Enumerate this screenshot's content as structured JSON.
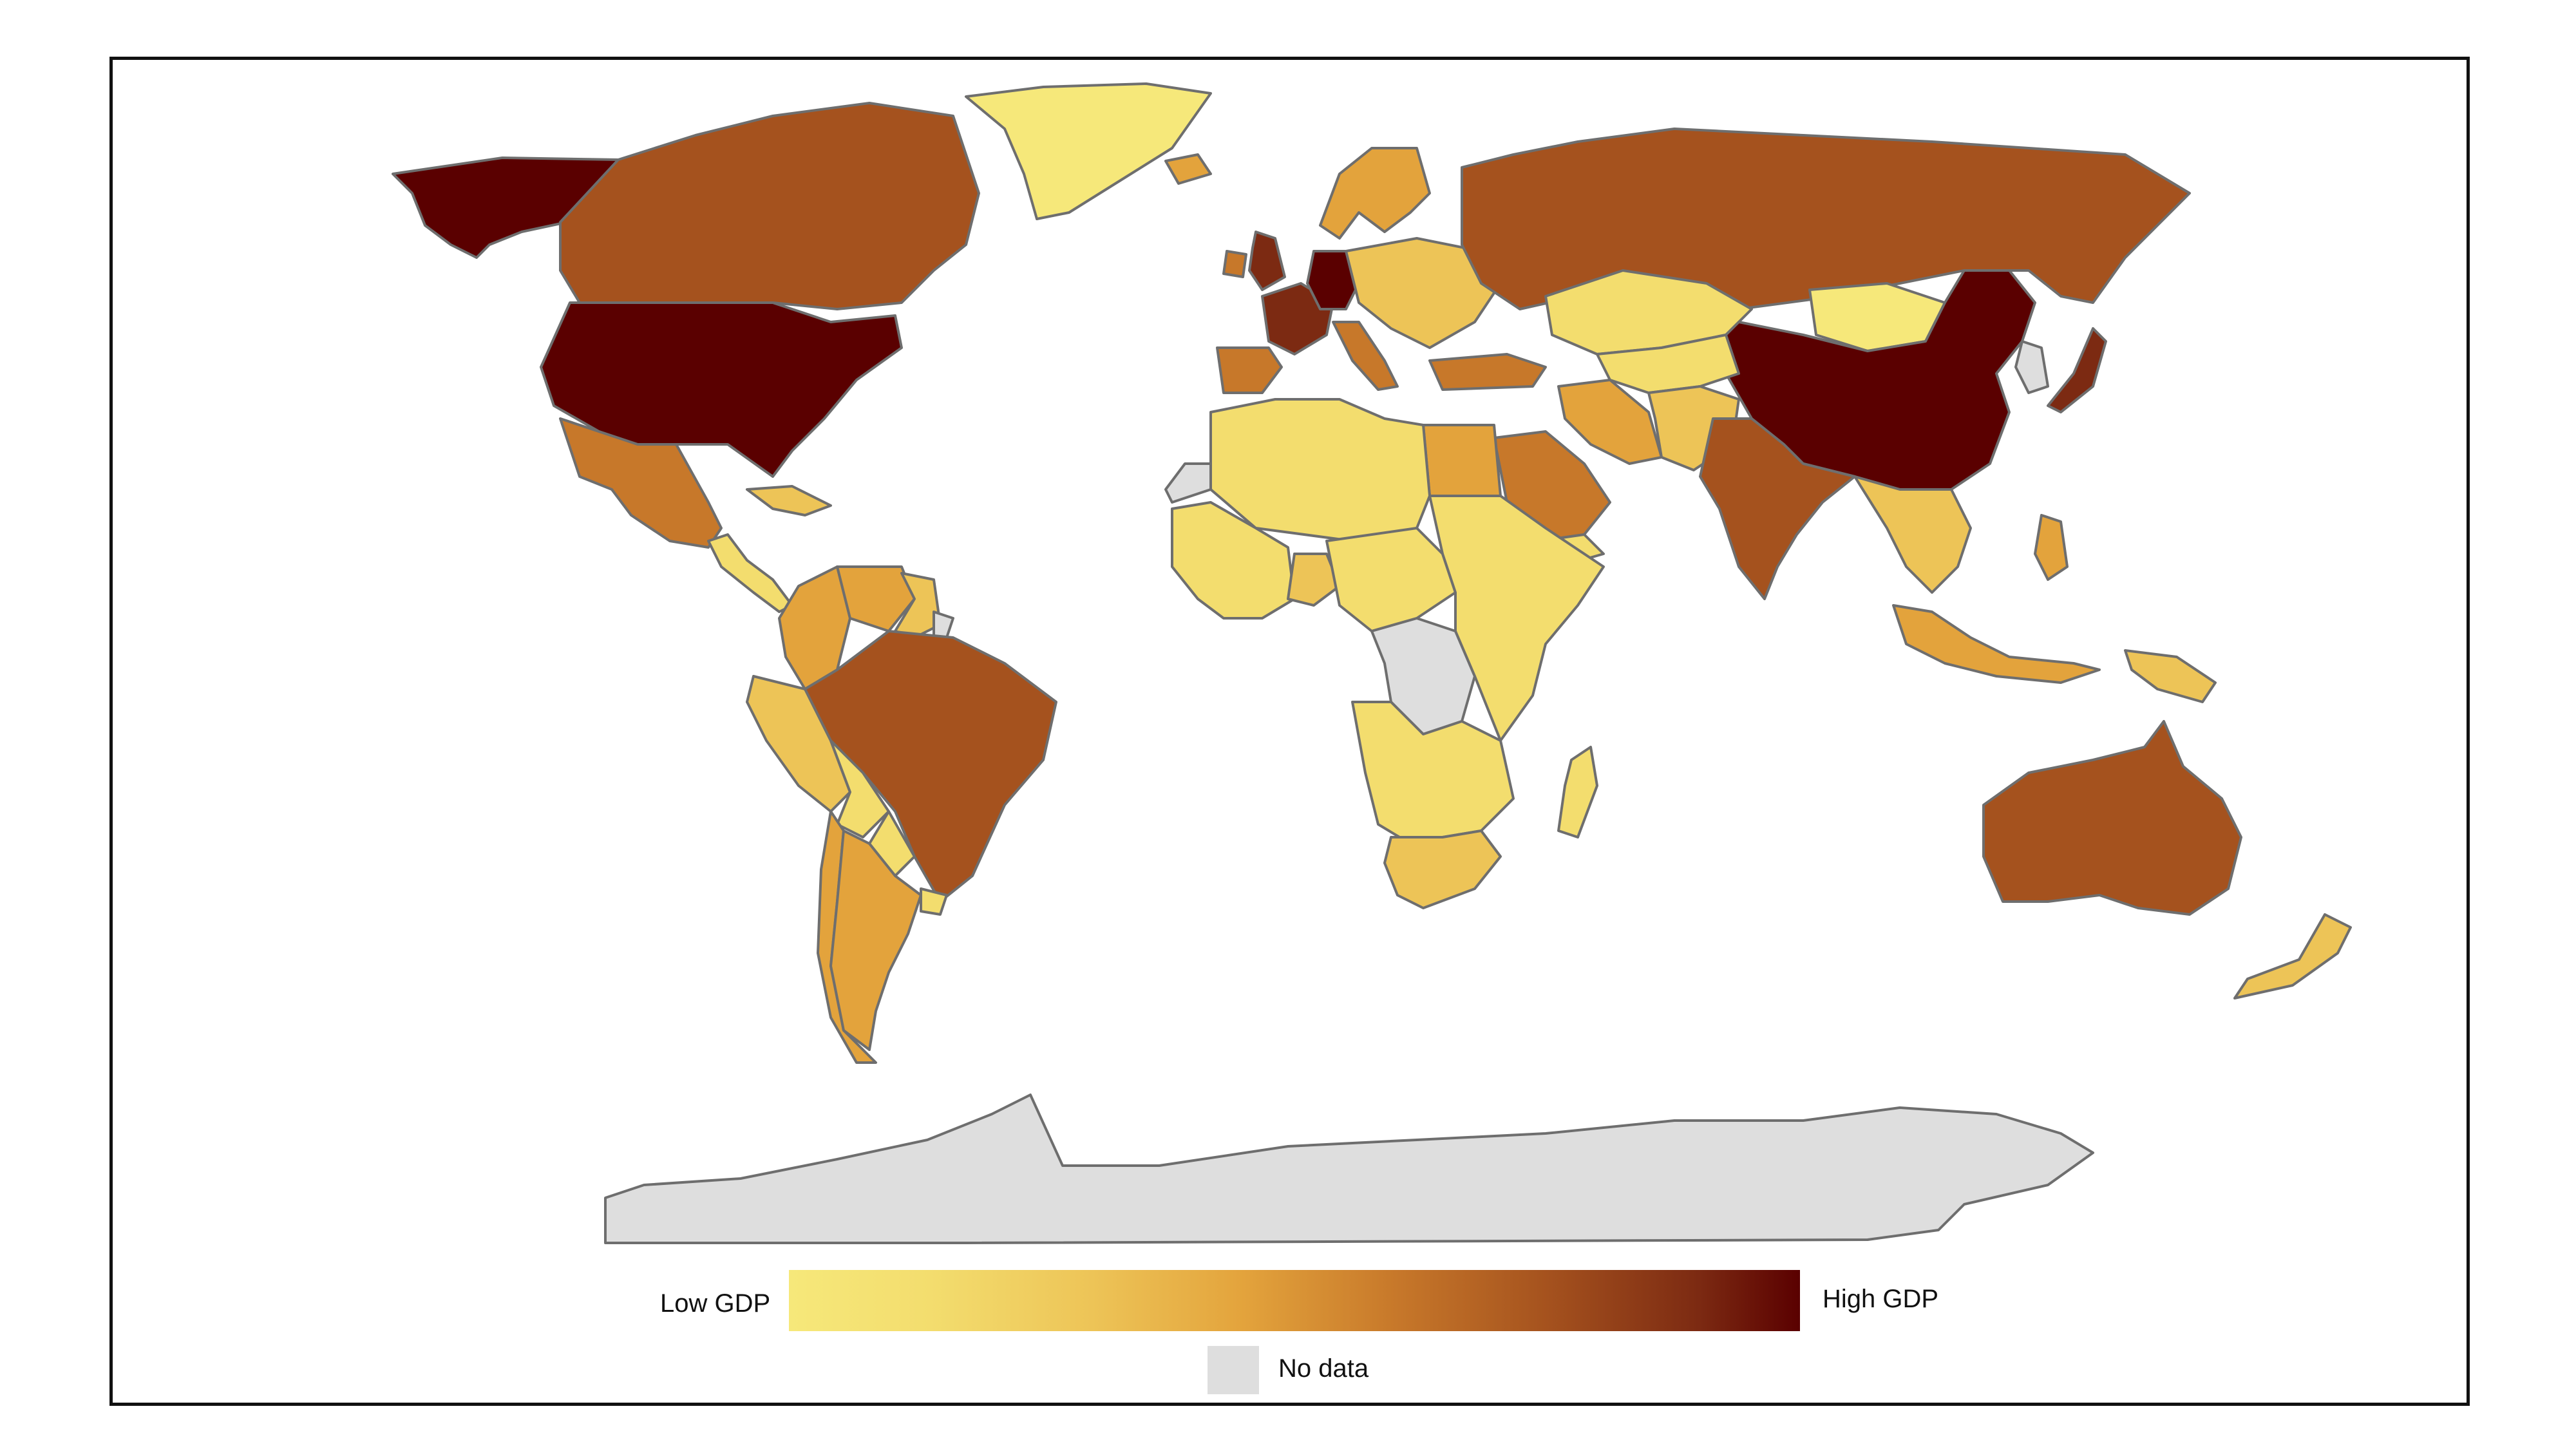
{
  "colors": {
    "stops": [
      "#F6E87A",
      "#F3DD6E",
      "#EDC457",
      "#E3A33C",
      "#C7782A",
      "#A5521E",
      "#7C2A12",
      "#5A0000"
    ],
    "no_data": "#DEDEDE",
    "border": "#6E6E6E",
    "background": "#FFFFFF",
    "frame": "#111111"
  },
  "legend": {
    "low_label": "Low GDP",
    "high_label": "High GDP",
    "no_data_label": "No data"
  },
  "regions": [
    {
      "name": "Alaska",
      "level": 7
    },
    {
      "name": "Canada",
      "level": 5
    },
    {
      "name": "Greenland",
      "level": 0
    },
    {
      "name": "United States",
      "level": 7
    },
    {
      "name": "Mexico",
      "level": 4
    },
    {
      "name": "Central America",
      "level": 1
    },
    {
      "name": "Caribbean",
      "level": 2
    },
    {
      "name": "Colombia",
      "level": 3
    },
    {
      "name": "Venezuela",
      "level": 3
    },
    {
      "name": "Guianas",
      "level": 2
    },
    {
      "name": "French Guiana",
      "level": 8
    },
    {
      "name": "Peru",
      "level": 2
    },
    {
      "name": "Brazil",
      "level": 5
    },
    {
      "name": "Bolivia",
      "level": 1
    },
    {
      "name": "Paraguay",
      "level": 1
    },
    {
      "name": "Chile",
      "level": 3
    },
    {
      "name": "Argentina",
      "level": 3
    },
    {
      "name": "Uruguay",
      "level": 1
    },
    {
      "name": "Iceland",
      "level": 3
    },
    {
      "name": "United Kingdom",
      "level": 6
    },
    {
      "name": "Ireland",
      "level": 4
    },
    {
      "name": "Scandinavia",
      "level": 3
    },
    {
      "name": "France",
      "level": 6
    },
    {
      "name": "Spain",
      "level": 4
    },
    {
      "name": "Germany",
      "level": 7
    },
    {
      "name": "Italy",
      "level": 4
    },
    {
      "name": "Eastern Europe",
      "level": 2
    },
    {
      "name": "Turkey",
      "level": 4
    },
    {
      "name": "Russia",
      "level": 5
    },
    {
      "name": "Kazakhstan",
      "level": 1
    },
    {
      "name": "Mongolia",
      "level": 0
    },
    {
      "name": "China",
      "level": 7
    },
    {
      "name": "Korea",
      "level": 8
    },
    {
      "name": "Japan",
      "level": 6
    },
    {
      "name": "Iran",
      "level": 3
    },
    {
      "name": "Saudi Arabia",
      "level": 4
    },
    {
      "name": "Yemen",
      "level": 1
    },
    {
      "name": "Egypt",
      "level": 3
    },
    {
      "name": "Central Asia",
      "level": 1
    },
    {
      "name": "Afghanistan Pakistan",
      "level": 2
    },
    {
      "name": "India",
      "level": 5
    },
    {
      "name": "Southeast Asia",
      "level": 2
    },
    {
      "name": "Philippines",
      "level": 3
    },
    {
      "name": "Indonesia",
      "level": 3
    },
    {
      "name": "Papua New Guinea",
      "level": 2
    },
    {
      "name": "Australia",
      "level": 5
    },
    {
      "name": "New Zealand",
      "level": 2
    },
    {
      "name": "Western Sahara",
      "level": 8
    },
    {
      "name": "North Africa",
      "level": 1
    },
    {
      "name": "West Africa",
      "level": 1
    },
    {
      "name": "Nigeria",
      "level": 2
    },
    {
      "name": "Central Africa",
      "level": 1
    },
    {
      "name": "DR Congo",
      "level": 8
    },
    {
      "name": "East Africa",
      "level": 1
    },
    {
      "name": "Southern Africa",
      "level": 1
    },
    {
      "name": "South Africa",
      "level": 2
    },
    {
      "name": "Madagascar",
      "level": 1
    },
    {
      "name": "Antarctica",
      "level": 8
    }
  ]
}
